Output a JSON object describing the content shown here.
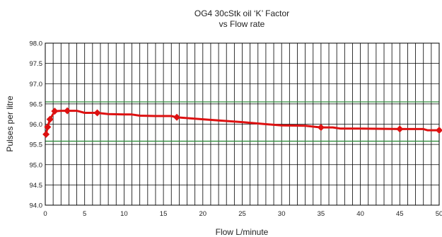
{
  "chart_data": {
    "type": "line",
    "title_line1": "OG4 30cStk oil ‘K’ Factor",
    "title_line2": "vs Flow rate",
    "xlabel": "Flow L/minute",
    "ylabel": "Pulses per litre",
    "xlim": [
      0,
      50
    ],
    "ylim": [
      94.0,
      98.0
    ],
    "x_ticks": [
      0,
      5,
      10,
      15,
      20,
      25,
      30,
      35,
      40,
      45,
      50
    ],
    "x_tick_labels": [
      "0",
      "5",
      "10",
      "15",
      "20",
      "25",
      "30",
      "35",
      "40",
      "45",
      "50"
    ],
    "y_ticks": [
      94.0,
      94.5,
      95.0,
      95.5,
      96.0,
      96.5,
      97.0,
      97.5,
      98.0
    ],
    "y_tick_labels": [
      "94.0",
      "94.5",
      "95.0",
      "95.5",
      "96.0",
      "96.5",
      "97.0",
      "97.5",
      "98.0"
    ],
    "minor_x_step": 1,
    "grid": true,
    "reference_lines": [
      96.55,
      95.58
    ],
    "series": [
      {
        "color": "#dd1111",
        "line": [
          [
            0.1,
            95.75
          ],
          [
            0.3,
            95.93
          ],
          [
            0.6,
            96.12
          ],
          [
            1.2,
            96.32
          ],
          [
            2.0,
            96.33
          ],
          [
            2.8,
            96.33
          ],
          [
            4.0,
            96.33
          ],
          [
            5.0,
            96.28
          ],
          [
            6.6,
            96.28
          ],
          [
            8.0,
            96.25
          ],
          [
            10.0,
            96.24
          ],
          [
            11.0,
            96.24
          ],
          [
            12.0,
            96.21
          ],
          [
            14.0,
            96.2
          ],
          [
            16.0,
            96.2
          ],
          [
            16.7,
            96.17
          ],
          [
            20.0,
            96.12
          ],
          [
            22.0,
            96.09
          ],
          [
            25.0,
            96.05
          ],
          [
            28.0,
            96.0
          ],
          [
            30.0,
            95.97
          ],
          [
            33.0,
            95.96
          ],
          [
            35.0,
            95.92
          ],
          [
            36.5,
            95.92
          ],
          [
            37.5,
            95.89
          ],
          [
            40.0,
            95.89
          ],
          [
            45.0,
            95.88
          ],
          [
            48.0,
            95.88
          ],
          [
            48.5,
            95.85
          ],
          [
            50.0,
            95.85
          ]
        ],
        "markers": [
          [
            0.1,
            95.75
          ],
          [
            0.3,
            95.93
          ],
          [
            0.6,
            96.12
          ],
          [
            1.2,
            96.32
          ],
          [
            2.8,
            96.33
          ],
          [
            6.6,
            96.28
          ],
          [
            16.7,
            96.17
          ],
          [
            35.0,
            95.92
          ],
          [
            45.0,
            95.88
          ],
          [
            50.0,
            95.85
          ]
        ]
      }
    ]
  }
}
